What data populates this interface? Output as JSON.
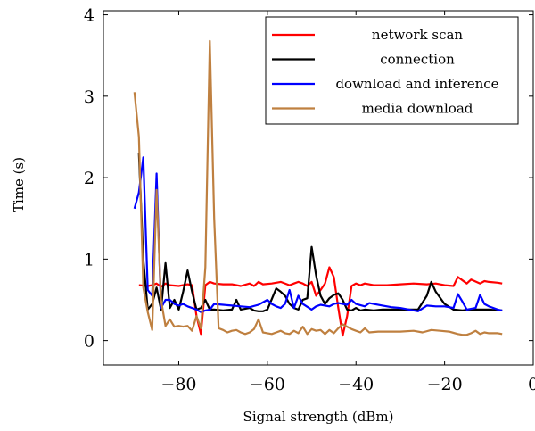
{
  "chart_data": {
    "type": "line",
    "xlabel": "Signal strength (dBm)",
    "ylabel": "Time (s)",
    "xlim": [
      -97,
      0
    ],
    "ylim": [
      -0.3,
      4.05
    ],
    "x_ticks": [
      -80,
      -60,
      -40,
      -20,
      0
    ],
    "x_tick_labels": [
      "−80",
      "−60",
      "−40",
      "−20",
      "0"
    ],
    "y_ticks": [
      0,
      1,
      2,
      3,
      4
    ],
    "y_tick_labels": [
      "0",
      "1",
      "2",
      "3",
      "4"
    ],
    "grid": false,
    "legend_position": "top-right",
    "series": [
      {
        "name": "network scan",
        "color": "#ff0000",
        "points": [
          [
            -89,
            0.68
          ],
          [
            -87,
            0.67
          ],
          [
            -86,
            0.68
          ],
          [
            -85,
            0.7
          ],
          [
            -84,
            0.66
          ],
          [
            -83,
            0.7
          ],
          [
            -82,
            0.68
          ],
          [
            -80,
            0.67
          ],
          [
            -78,
            0.69
          ],
          [
            -77,
            0.68
          ],
          [
            -76,
            0.3
          ],
          [
            -75,
            0.08
          ],
          [
            -74,
            0.68
          ],
          [
            -73,
            0.72
          ],
          [
            -72,
            0.7
          ],
          [
            -70,
            0.69
          ],
          [
            -68,
            0.69
          ],
          [
            -66,
            0.67
          ],
          [
            -64,
            0.7
          ],
          [
            -63,
            0.67
          ],
          [
            -62,
            0.72
          ],
          [
            -61,
            0.69
          ],
          [
            -59,
            0.7
          ],
          [
            -57,
            0.72
          ],
          [
            -55,
            0.68
          ],
          [
            -54,
            0.7
          ],
          [
            -53,
            0.72
          ],
          [
            -52,
            0.7
          ],
          [
            -51,
            0.67
          ],
          [
            -50,
            0.72
          ],
          [
            -49,
            0.55
          ],
          [
            -48,
            0.62
          ],
          [
            -47,
            0.7
          ],
          [
            -46,
            0.9
          ],
          [
            -45,
            0.78
          ],
          [
            -44,
            0.4
          ],
          [
            -43,
            0.06
          ],
          [
            -42,
            0.3
          ],
          [
            -41,
            0.67
          ],
          [
            -40,
            0.7
          ],
          [
            -39,
            0.68
          ],
          [
            -38,
            0.7
          ],
          [
            -36,
            0.68
          ],
          [
            -33,
            0.68
          ],
          [
            -30,
            0.69
          ],
          [
            -27,
            0.7
          ],
          [
            -24,
            0.69
          ],
          [
            -22,
            0.7
          ],
          [
            -20,
            0.68
          ],
          [
            -18,
            0.67
          ],
          [
            -17,
            0.78
          ],
          [
            -15,
            0.7
          ],
          [
            -14,
            0.75
          ],
          [
            -12,
            0.7
          ],
          [
            -11,
            0.73
          ],
          [
            -10,
            0.72
          ],
          [
            -8,
            0.71
          ],
          [
            -7,
            0.7
          ]
        ]
      },
      {
        "name": "connection",
        "color": "#000000",
        "points": [
          [
            -89,
            2.3
          ],
          [
            -88,
            1.0
          ],
          [
            -87,
            0.38
          ],
          [
            -86,
            0.45
          ],
          [
            -85,
            0.65
          ],
          [
            -84,
            0.38
          ],
          [
            -83,
            0.95
          ],
          [
            -82,
            0.4
          ],
          [
            -81,
            0.5
          ],
          [
            -80,
            0.38
          ],
          [
            -79,
            0.6
          ],
          [
            -78,
            0.86
          ],
          [
            -77,
            0.6
          ],
          [
            -76,
            0.38
          ],
          [
            -75,
            0.4
          ],
          [
            -74,
            0.5
          ],
          [
            -73,
            0.38
          ],
          [
            -72,
            0.38
          ],
          [
            -70,
            0.37
          ],
          [
            -68,
            0.38
          ],
          [
            -67,
            0.5
          ],
          [
            -66,
            0.38
          ],
          [
            -64,
            0.4
          ],
          [
            -63,
            0.37
          ],
          [
            -62,
            0.36
          ],
          [
            -61,
            0.36
          ],
          [
            -60,
            0.38
          ],
          [
            -58,
            0.64
          ],
          [
            -57,
            0.6
          ],
          [
            -56,
            0.55
          ],
          [
            -55,
            0.45
          ],
          [
            -54,
            0.4
          ],
          [
            -53,
            0.38
          ],
          [
            -52,
            0.5
          ],
          [
            -51,
            0.52
          ],
          [
            -50,
            1.15
          ],
          [
            -49,
            0.8
          ],
          [
            -48,
            0.55
          ],
          [
            -47,
            0.45
          ],
          [
            -46,
            0.52
          ],
          [
            -45,
            0.56
          ],
          [
            -44,
            0.58
          ],
          [
            -43,
            0.5
          ],
          [
            -42,
            0.38
          ],
          [
            -41,
            0.37
          ],
          [
            -40,
            0.4
          ],
          [
            -39,
            0.37
          ],
          [
            -38,
            0.38
          ],
          [
            -36,
            0.37
          ],
          [
            -34,
            0.38
          ],
          [
            -30,
            0.38
          ],
          [
            -26,
            0.38
          ],
          [
            -24,
            0.55
          ],
          [
            -23,
            0.72
          ],
          [
            -22,
            0.6
          ],
          [
            -20,
            0.45
          ],
          [
            -18,
            0.38
          ],
          [
            -16,
            0.37
          ],
          [
            -14,
            0.38
          ],
          [
            -12,
            0.38
          ],
          [
            -10,
            0.38
          ],
          [
            -8,
            0.37
          ],
          [
            -7,
            0.37
          ]
        ]
      },
      {
        "name": "download and inference",
        "color": "#0000ff",
        "points": [
          [
            -90,
            1.62
          ],
          [
            -89,
            1.82
          ],
          [
            -88,
            2.25
          ],
          [
            -87,
            0.62
          ],
          [
            -86,
            0.55
          ],
          [
            -85,
            2.05
          ],
          [
            -84,
            0.4
          ],
          [
            -83,
            0.5
          ],
          [
            -82,
            0.5
          ],
          [
            -81,
            0.45
          ],
          [
            -80,
            0.43
          ],
          [
            -79,
            0.45
          ],
          [
            -78,
            0.42
          ],
          [
            -76,
            0.38
          ],
          [
            -75,
            0.35
          ],
          [
            -74,
            0.37
          ],
          [
            -73,
            0.38
          ],
          [
            -72,
            0.45
          ],
          [
            -70,
            0.44
          ],
          [
            -68,
            0.43
          ],
          [
            -66,
            0.42
          ],
          [
            -64,
            0.41
          ],
          [
            -62,
            0.44
          ],
          [
            -60,
            0.5
          ],
          [
            -59,
            0.45
          ],
          [
            -58,
            0.42
          ],
          [
            -57,
            0.4
          ],
          [
            -56,
            0.45
          ],
          [
            -55,
            0.62
          ],
          [
            -54,
            0.4
          ],
          [
            -53,
            0.55
          ],
          [
            -52,
            0.45
          ],
          [
            -50,
            0.38
          ],
          [
            -49,
            0.42
          ],
          [
            -48,
            0.44
          ],
          [
            -46,
            0.42
          ],
          [
            -45,
            0.45
          ],
          [
            -44,
            0.46
          ],
          [
            -42,
            0.44
          ],
          [
            -41,
            0.5
          ],
          [
            -40,
            0.45
          ],
          [
            -38,
            0.42
          ],
          [
            -37,
            0.46
          ],
          [
            -36,
            0.45
          ],
          [
            -34,
            0.43
          ],
          [
            -32,
            0.41
          ],
          [
            -30,
            0.4
          ],
          [
            -28,
            0.38
          ],
          [
            -26,
            0.36
          ],
          [
            -24,
            0.43
          ],
          [
            -22,
            0.42
          ],
          [
            -20,
            0.42
          ],
          [
            -18,
            0.4
          ],
          [
            -17,
            0.57
          ],
          [
            -16,
            0.48
          ],
          [
            -15,
            0.38
          ],
          [
            -13,
            0.4
          ],
          [
            -12,
            0.56
          ],
          [
            -11,
            0.45
          ],
          [
            -10,
            0.42
          ],
          [
            -8,
            0.38
          ],
          [
            -7,
            0.37
          ]
        ]
      },
      {
        "name": "media download",
        "color": "#bf8040",
        "points": [
          [
            -90,
            3.05
          ],
          [
            -89,
            2.5
          ],
          [
            -88,
            0.65
          ],
          [
            -87,
            0.35
          ],
          [
            -86,
            0.13
          ],
          [
            -85,
            1.85
          ],
          [
            -84,
            0.5
          ],
          [
            -83,
            0.18
          ],
          [
            -82,
            0.26
          ],
          [
            -81,
            0.17
          ],
          [
            -80,
            0.18
          ],
          [
            -79,
            0.17
          ],
          [
            -78,
            0.18
          ],
          [
            -77,
            0.12
          ],
          [
            -76,
            0.3
          ],
          [
            -75,
            0.15
          ],
          [
            -74,
            0.9
          ],
          [
            -73,
            3.68
          ],
          [
            -72,
            1.5
          ],
          [
            -71,
            0.15
          ],
          [
            -70,
            0.13
          ],
          [
            -69,
            0.1
          ],
          [
            -68,
            0.12
          ],
          [
            -67,
            0.13
          ],
          [
            -66,
            0.1
          ],
          [
            -65,
            0.08
          ],
          [
            -64,
            0.1
          ],
          [
            -63,
            0.14
          ],
          [
            -62,
            0.26
          ],
          [
            -61,
            0.1
          ],
          [
            -60,
            0.09
          ],
          [
            -59,
            0.08
          ],
          [
            -58,
            0.1
          ],
          [
            -57,
            0.12
          ],
          [
            -56,
            0.09
          ],
          [
            -55,
            0.08
          ],
          [
            -54,
            0.12
          ],
          [
            -53,
            0.09
          ],
          [
            -52,
            0.17
          ],
          [
            -51,
            0.08
          ],
          [
            -50,
            0.14
          ],
          [
            -49,
            0.12
          ],
          [
            -48,
            0.13
          ],
          [
            -47,
            0.08
          ],
          [
            -46,
            0.13
          ],
          [
            -45,
            0.09
          ],
          [
            -44,
            0.15
          ],
          [
            -43,
            0.2
          ],
          [
            -42,
            0.17
          ],
          [
            -41,
            0.14
          ],
          [
            -40,
            0.12
          ],
          [
            -39,
            0.1
          ],
          [
            -38,
            0.15
          ],
          [
            -37,
            0.1
          ],
          [
            -35,
            0.11
          ],
          [
            -33,
            0.11
          ],
          [
            -30,
            0.11
          ],
          [
            -27,
            0.12
          ],
          [
            -25,
            0.1
          ],
          [
            -23,
            0.13
          ],
          [
            -21,
            0.12
          ],
          [
            -19,
            0.11
          ],
          [
            -17,
            0.08
          ],
          [
            -16,
            0.07
          ],
          [
            -15,
            0.07
          ],
          [
            -14,
            0.09
          ],
          [
            -13,
            0.12
          ],
          [
            -12,
            0.08
          ],
          [
            -11,
            0.1
          ],
          [
            -10,
            0.09
          ],
          [
            -8,
            0.09
          ],
          [
            -7,
            0.08
          ]
        ]
      }
    ]
  }
}
